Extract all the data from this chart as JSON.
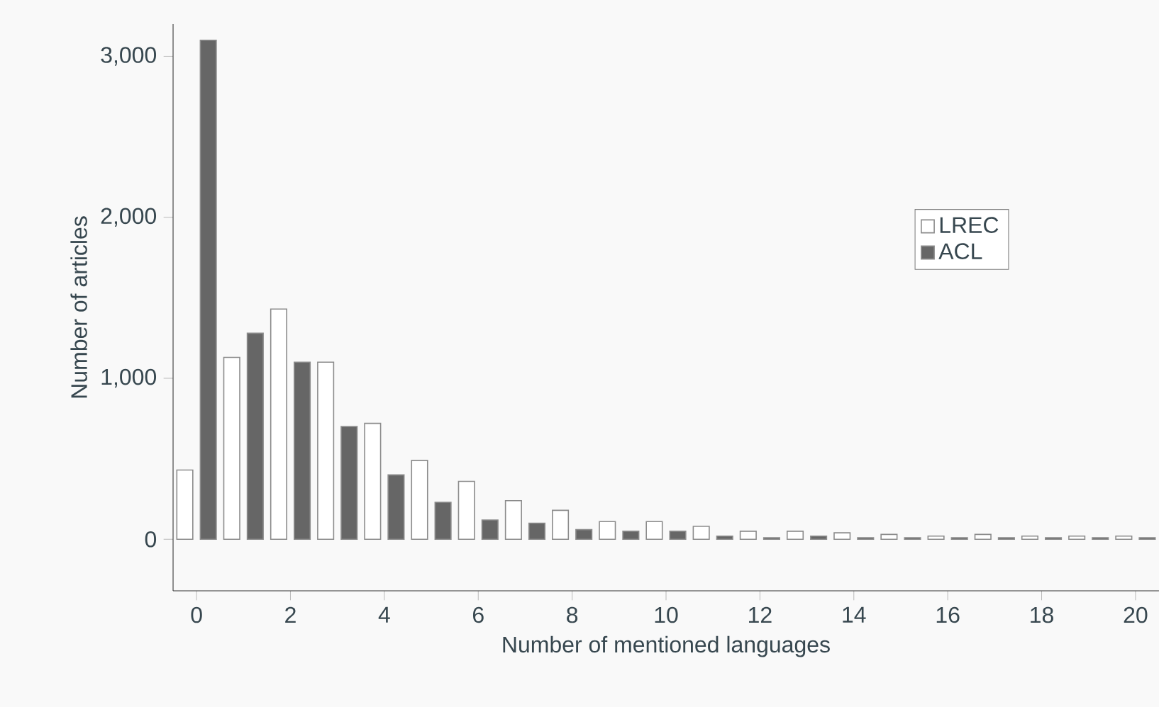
{
  "chart_data": {
    "type": "bar",
    "xlabel": "Number of mentioned languages",
    "ylabel": "Number of articles",
    "x": [
      0,
      1,
      2,
      3,
      4,
      5,
      6,
      7,
      8,
      9,
      10,
      11,
      12,
      13,
      14,
      15,
      16,
      17,
      18,
      19,
      20
    ],
    "series": [
      {
        "name": "LREC",
        "color": "#ffffff",
        "values": [
          430,
          1130,
          1430,
          1100,
          720,
          490,
          360,
          240,
          180,
          110,
          110,
          80,
          50,
          50,
          40,
          30,
          20,
          30,
          20,
          20,
          20
        ]
      },
      {
        "name": "ACL",
        "color": "#666666",
        "values": [
          3100,
          1280,
          1100,
          700,
          400,
          230,
          120,
          100,
          60,
          50,
          50,
          20,
          10,
          20,
          10,
          10,
          10,
          10,
          10,
          10,
          10
        ]
      }
    ],
    "xlim": [
      -0.5,
      20.5
    ],
    "ylim": [
      -320,
      3200
    ],
    "xticks": [
      0,
      2,
      4,
      6,
      8,
      10,
      12,
      14,
      16,
      18,
      20
    ],
    "yticks": [
      0,
      {
        "value": 1000,
        "label": "1,000"
      },
      {
        "value": 2000,
        "label": "2,000"
      },
      {
        "value": 3000,
        "label": "3,000"
      }
    ],
    "grid": false,
    "legend": "right"
  }
}
